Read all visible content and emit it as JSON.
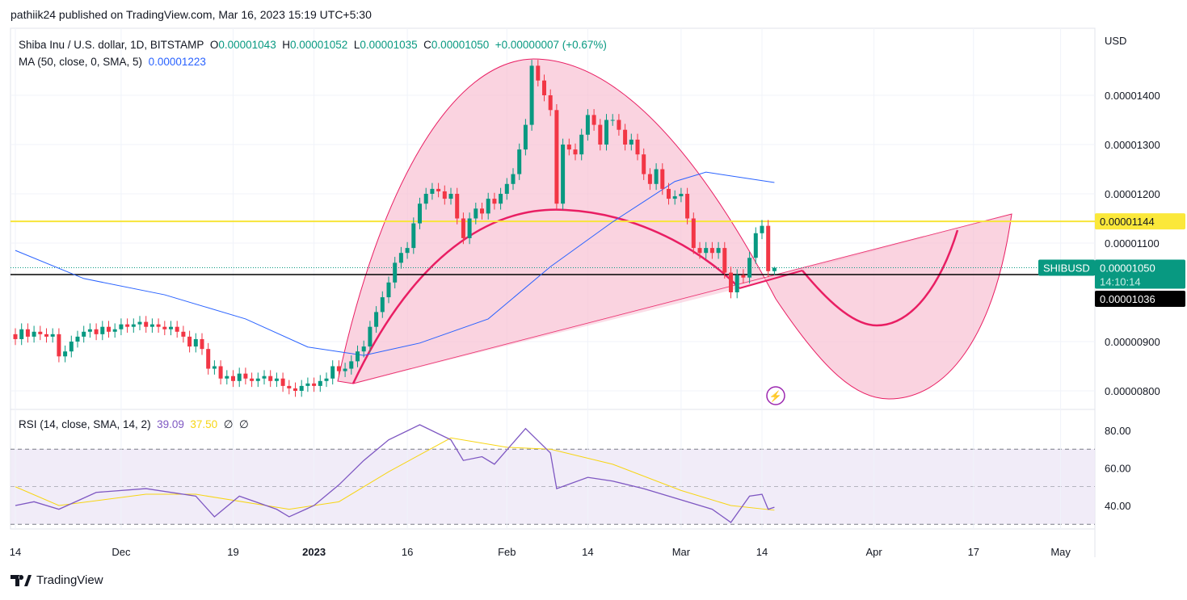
{
  "publisher": "pathiik24 published on TradingView.com, Mar 16, 2023 15:19 UTC+5:30",
  "legend": {
    "symbol": "Shiba Inu / U.S. dollar, 1D, BITSTAMP",
    "o_label": "O",
    "o": "0.00001043",
    "h_label": "H",
    "h": "0.00001052",
    "l_label": "L",
    "l": "0.00001035",
    "c_label": "C",
    "c": "0.00001050",
    "change": "+0.00000007 (+0.67%)",
    "ma_label": "MA (50, close, 0, SMA, 5)",
    "ma_value": "0.00001223"
  },
  "rsi_legend": {
    "label": "RSI (14, close, SMA, 14, 2)",
    "rsi": "39.09",
    "ma": "37.50",
    "extra1": "∅",
    "extra2": "∅"
  },
  "axis": {
    "currency": "USD",
    "price_ticks": [
      "0.00001400",
      "0.00001300",
      "0.00001200",
      "0.00001100",
      "0.00000900",
      "0.00000800"
    ],
    "rsi_ticks": [
      "80.00",
      "60.00",
      "40.00"
    ],
    "date_ticks": [
      {
        "label": "14",
        "date": "2022-11-14"
      },
      {
        "label": "Dec",
        "date": "2022-12-01"
      },
      {
        "label": "19",
        "date": "2022-12-19"
      },
      {
        "label": "2023",
        "date": "2023-01-01"
      },
      {
        "label": "16",
        "date": "2023-01-16"
      },
      {
        "label": "Feb",
        "date": "2023-02-01"
      },
      {
        "label": "14",
        "date": "2023-02-14"
      },
      {
        "label": "Mar",
        "date": "2023-03-01"
      },
      {
        "label": "14",
        "date": "2023-03-14"
      },
      {
        "label": "Apr",
        "date": "2023-04-01"
      },
      {
        "label": "17",
        "date": "2023-04-17"
      },
      {
        "label": "May",
        "date": "2023-05-01"
      }
    ]
  },
  "price_labels": {
    "yellow_level": "0.00001144",
    "symbol_tag": "SHIBUSD",
    "last_price": "0.00001050",
    "countdown": "14:10:14",
    "black_level": "0.00001036"
  },
  "colors": {
    "up": "#089981",
    "down": "#f23645",
    "ma": "#2962ff",
    "rsi": "#7e57c2",
    "rsi_ma": "#f7d513",
    "yellow_line": "#f7e43a",
    "drawing": "#e91e63"
  },
  "footer": {
    "brand": "TradingView"
  },
  "chart_data": {
    "type": "candlestick",
    "price_unit": "1e-6 USD",
    "start_date": "2022-11-14",
    "closes": [
      9.05,
      9.25,
      9.1,
      9.2,
      9.15,
      9.1,
      9.15,
      8.7,
      8.8,
      9.0,
      9.1,
      9.2,
      9.25,
      9.15,
      9.3,
      9.2,
      9.25,
      9.35,
      9.3,
      9.35,
      9.4,
      9.3,
      9.35,
      9.3,
      9.25,
      9.3,
      9.2,
      9.1,
      8.9,
      9.05,
      8.85,
      8.45,
      8.5,
      8.25,
      8.3,
      8.2,
      8.35,
      8.25,
      8.2,
      8.25,
      8.3,
      8.2,
      8.25,
      8.1,
      8.05,
      8.0,
      8.1,
      8.15,
      8.1,
      8.2,
      8.25,
      8.5,
      8.4,
      8.45,
      8.6,
      8.8,
      8.9,
      9.3,
      9.6,
      9.9,
      10.2,
      10.6,
      10.8,
      10.9,
      11.4,
      11.8,
      12.0,
      12.1,
      12.05,
      11.9,
      12.0,
      11.5,
      11.1,
      11.5,
      11.7,
      11.6,
      11.9,
      11.8,
      12.0,
      12.2,
      12.4,
      12.9,
      13.4,
      14.6,
      14.3,
      14.0,
      13.7,
      11.8,
      13.0,
      12.9,
      12.8,
      13.2,
      13.6,
      13.4,
      13.0,
      13.5,
      13.5,
      13.3,
      13.0,
      13.1,
      12.8,
      12.4,
      12.2,
      12.5,
      12.1,
      11.9,
      11.95,
      12.0,
      11.5,
      10.9,
      10.8,
      10.9,
      10.8,
      10.9,
      10.4,
      10.0,
      10.35,
      10.3,
      10.7,
      11.2,
      11.35,
      10.43,
      10.5
    ],
    "last_candle": {
      "open": 10.43,
      "high": 10.52,
      "low": 10.35,
      "close": 10.5
    },
    "ma50": [
      [
        "2022-11-14",
        10.85
      ],
      [
        "2022-11-25",
        10.28
      ],
      [
        "2022-12-08",
        9.95
      ],
      [
        "2022-12-21",
        9.46
      ],
      [
        "2022-12-31",
        8.89
      ],
      [
        "2023-01-09",
        8.72
      ],
      [
        "2023-01-18",
        8.97
      ],
      [
        "2023-01-29",
        9.46
      ],
      [
        "2023-02-08",
        10.52
      ],
      [
        "2023-02-18",
        11.43
      ],
      [
        "2023-02-28",
        12.25
      ],
      [
        "2023-03-05",
        12.44
      ],
      [
        "2023-03-16",
        12.23
      ]
    ],
    "horizontal_lines": [
      11.44,
      10.36
    ],
    "rsi": [
      [
        "2022-11-14",
        40
      ],
      [
        "2022-11-17",
        42
      ],
      [
        "2022-11-21",
        38
      ],
      [
        "2022-11-27",
        47
      ],
      [
        "2022-12-05",
        49
      ],
      [
        "2022-12-13",
        45
      ],
      [
        "2022-12-16",
        34
      ],
      [
        "2022-12-20",
        45
      ],
      [
        "2022-12-26",
        38
      ],
      [
        "2022-12-28",
        34
      ],
      [
        "2023-01-01",
        40
      ],
      [
        "2023-01-05",
        51
      ],
      [
        "2023-01-09",
        64
      ],
      [
        "2023-01-13",
        75
      ],
      [
        "2023-01-18",
        83
      ],
      [
        "2023-01-23",
        75
      ],
      [
        "2023-01-25",
        64
      ],
      [
        "2023-01-28",
        66
      ],
      [
        "2023-01-30",
        62
      ],
      [
        "2023-02-04",
        81
      ],
      [
        "2023-02-08",
        68
      ],
      [
        "2023-02-09",
        49
      ],
      [
        "2023-02-14",
        55
      ],
      [
        "2023-02-18",
        53
      ],
      [
        "2023-02-23",
        49
      ],
      [
        "2023-03-01",
        43
      ],
      [
        "2023-03-06",
        38
      ],
      [
        "2023-03-09",
        31
      ],
      [
        "2023-03-12",
        45
      ],
      [
        "2023-03-14",
        46
      ],
      [
        "2023-03-15",
        38
      ],
      [
        "2023-03-16",
        39.09
      ]
    ],
    "rsi_ma": [
      [
        "2022-11-14",
        50
      ],
      [
        "2022-11-21",
        40
      ],
      [
        "2022-12-05",
        46
      ],
      [
        "2022-12-13",
        46
      ],
      [
        "2022-12-28",
        38
      ],
      [
        "2023-01-05",
        42
      ],
      [
        "2023-01-13",
        58
      ],
      [
        "2023-01-23",
        76
      ],
      [
        "2023-02-01",
        71
      ],
      [
        "2023-02-08",
        70
      ],
      [
        "2023-02-18",
        62
      ],
      [
        "2023-03-01",
        48
      ],
      [
        "2023-03-09",
        40
      ],
      [
        "2023-03-16",
        37.5
      ]
    ],
    "rsi_bands": [
      70,
      50,
      30
    ],
    "ylim": [
      7.8,
      14.8
    ],
    "rsi_ylim": [
      28,
      88
    ]
  }
}
